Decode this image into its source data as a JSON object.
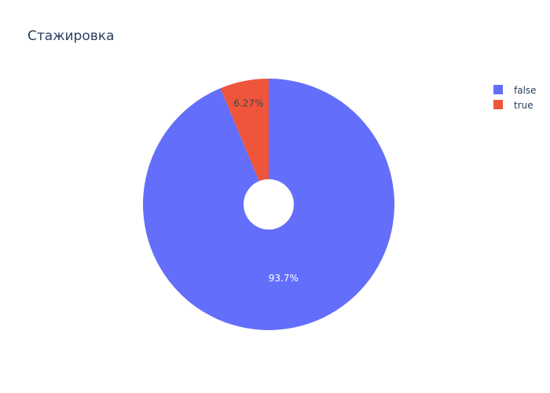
{
  "chart_data": {
    "type": "pie",
    "title": "Стажировка",
    "hole": true,
    "slices": [
      {
        "label": "false",
        "value": 93.73,
        "text": "93.7%",
        "color": "#636efa",
        "text_color": "#ffffff"
      },
      {
        "label": "true",
        "value": 6.27,
        "text": "6.27%",
        "color": "#ef553b",
        "text_color": "#444444"
      }
    ],
    "legend": {
      "placement": "top-right",
      "items": [
        "false",
        "true"
      ]
    }
  }
}
